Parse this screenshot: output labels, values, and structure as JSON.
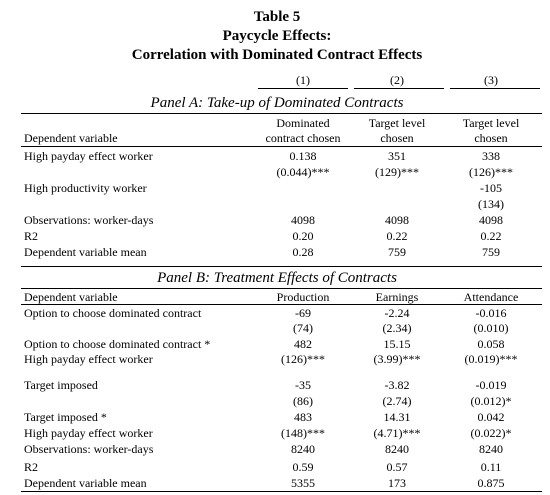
{
  "title": {
    "line1": "Table 5",
    "line2": "Paycycle Effects:",
    "line3": "Correlation with Dominated Contract Effects"
  },
  "col_numbers": [
    "(1)",
    "(2)",
    "(3)"
  ],
  "panel_a": {
    "title": "Panel A: Take-up of Dominated Contracts",
    "headers": {
      "c1": [
        "Dominated",
        "contract chosen"
      ],
      "c2": [
        "Target level",
        "chosen"
      ],
      "c3": [
        "Target level",
        "chosen"
      ],
      "dep": "Dependent variable"
    },
    "rows": [
      {
        "label": "High payday effect worker",
        "c1": "0.138",
        "c2": "351",
        "c3": "338"
      },
      {
        "label": "",
        "c1": "(0.044)***",
        "c2": "(129)***",
        "c3": "(126)***"
      },
      {
        "label": "High productivity worker",
        "c1": "",
        "c2": "",
        "c3": "-105"
      },
      {
        "label": "",
        "c1": "",
        "c2": "",
        "c3": "(134)"
      },
      {
        "label": "Observations: worker-days",
        "c1": "4098",
        "c2": "4098",
        "c3": "4098"
      },
      {
        "label": "R2",
        "c1": "0.20",
        "c2": "0.22",
        "c3": "0.22"
      },
      {
        "label": "Dependent variable mean",
        "c1": "0.28",
        "c2": "759",
        "c3": "759"
      }
    ]
  },
  "panel_b": {
    "title": "Panel B: Treatment Effects of Contracts",
    "headers": {
      "dep": "Dependent variable",
      "c1": "Production",
      "c2": "Earnings",
      "c3": "Attendance"
    },
    "rows": [
      {
        "label": "Option to choose dominated contract",
        "c1": "-69",
        "c2": "-2.24",
        "c3": "-0.016"
      },
      {
        "label": "",
        "c1": "(74)",
        "c2": "(2.34)",
        "c3": "(0.010)"
      },
      {
        "label": "Option to choose dominated contract *",
        "c1": "482",
        "c2": "15.15",
        "c3": "0.058"
      },
      {
        "label": "High payday effect worker",
        "c1": "(126)***",
        "c2": "(3.99)***",
        "c3": "(0.019)***"
      },
      {
        "label": "Target imposed",
        "c1": "-35",
        "c2": "-3.82",
        "c3": "-0.019"
      },
      {
        "label": "",
        "c1": "(86)",
        "c2": "(2.74)",
        "c3": "(0.012)*"
      },
      {
        "label": "Target imposed *",
        "c1": "483",
        "c2": "14.31",
        "c3": "0.042"
      },
      {
        "label": "High payday effect worker",
        "c1": "(148)***",
        "c2": "(4.71)***",
        "c3": "(0.022)*"
      },
      {
        "label": "Observations: worker-days",
        "c1": "8240",
        "c2": "8240",
        "c3": "8240"
      },
      {
        "label": "R2",
        "c1": "0.59",
        "c2": "0.57",
        "c3": "0.11"
      },
      {
        "label": "Dependent variable mean",
        "c1": "5355",
        "c2": "173",
        "c3": "0.875"
      }
    ]
  }
}
